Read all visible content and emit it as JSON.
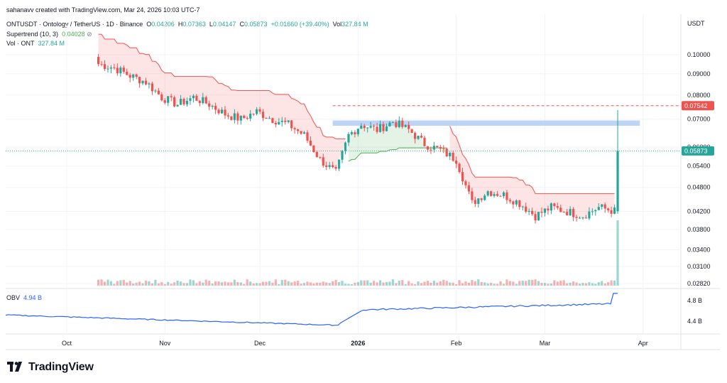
{
  "header": {
    "credit": "sahanavv created with TradingView.com, Mar 24, 2026 10:03 UTC-7",
    "symbol": "ONTUSDT · Ontology / TetherUS · 1D · Binance",
    "o_label": "O",
    "o_value": "0.04206",
    "h_label": "H",
    "h_value": "0.07363",
    "l_label": "L",
    "l_value": "0.04147",
    "c_label": "C",
    "c_value": "0.05873",
    "change": "+0.01660 (+39.40%)",
    "vol_label": "Vol",
    "vol_value": "327.84 M",
    "supertrend_label": "Supertrend (10, 3)",
    "supertrend_value": "0.04028",
    "volume_label": "Vol · ONT",
    "volume_value": "327.84 M",
    "obv_label": "OBV",
    "obv_value": "4.94 B"
  },
  "price_axis": {
    "currency": "USDT",
    "ticks": [
      "0.10000",
      "0.09000",
      "0.08000",
      "0.07000",
      "0.06000",
      "0.05400",
      "0.04800",
      "0.04200",
      "0.03800",
      "0.03400",
      "0.03100",
      "0.02820"
    ],
    "last_price_tag": "0.05873",
    "high_tag": "0.07542"
  },
  "obv_axis": {
    "ticks": [
      "4.8 B",
      "4.4 B"
    ]
  },
  "time_axis": {
    "ticks": [
      "Oct",
      "Nov",
      "Dec",
      "2026",
      "Feb",
      "Mar",
      "Apr"
    ]
  },
  "brand": {
    "name": "TradingView"
  },
  "colors": {
    "up": "#26a69a",
    "down": "#ef5350",
    "obv": "#2962ff",
    "zone": "#b3ccf5",
    "supertrend_up": "#4caf50",
    "supertrend_down": "#ef5350"
  },
  "chart_data": {
    "type": "candlestick",
    "title": "ONTUSDT · Ontology / TetherUS · 1D · Binance",
    "ylim": [
      0.028,
      0.11
    ],
    "y_scale": "log",
    "grid": true,
    "closes": [
      {
        "date": "2025-10-11",
        "close": 0.095
      },
      {
        "date": "2025-10-16",
        "close": 0.093
      },
      {
        "date": "2025-10-21",
        "close": 0.089
      },
      {
        "date": "2025-10-26",
        "close": 0.086
      },
      {
        "date": "2025-10-31",
        "close": 0.079
      },
      {
        "date": "2025-11-05",
        "close": 0.076
      },
      {
        "date": "2025-11-10",
        "close": 0.079
      },
      {
        "date": "2025-11-15",
        "close": 0.076
      },
      {
        "date": "2025-11-20",
        "close": 0.072
      },
      {
        "date": "2025-11-25",
        "close": 0.07
      },
      {
        "date": "2025-11-30",
        "close": 0.073
      },
      {
        "date": "2025-12-05",
        "close": 0.07
      },
      {
        "date": "2025-12-10",
        "close": 0.068
      },
      {
        "date": "2025-12-15",
        "close": 0.064
      },
      {
        "date": "2025-12-20",
        "close": 0.056
      },
      {
        "date": "2025-12-25",
        "close": 0.052
      },
      {
        "date": "2025-12-29",
        "close": 0.064
      },
      {
        "date": "2026-01-02",
        "close": 0.068
      },
      {
        "date": "2026-01-07",
        "close": 0.066
      },
      {
        "date": "2026-01-12",
        "close": 0.069
      },
      {
        "date": "2026-01-17",
        "close": 0.066
      },
      {
        "date": "2026-01-22",
        "close": 0.061
      },
      {
        "date": "2026-01-27",
        "close": 0.059
      },
      {
        "date": "2026-02-01",
        "close": 0.056
      },
      {
        "date": "2026-02-06",
        "close": 0.044
      },
      {
        "date": "2026-02-11",
        "close": 0.047
      },
      {
        "date": "2026-02-16",
        "close": 0.046
      },
      {
        "date": "2026-02-21",
        "close": 0.044
      },
      {
        "date": "2026-02-26",
        "close": 0.041
      },
      {
        "date": "2026-03-03",
        "close": 0.043
      },
      {
        "date": "2026-03-08",
        "close": 0.042
      },
      {
        "date": "2026-03-13",
        "close": 0.041
      },
      {
        "date": "2026-03-18",
        "close": 0.043
      },
      {
        "date": "2026-03-23",
        "close": 0.0421
      },
      {
        "date": "2026-03-24",
        "close": 0.05873
      }
    ],
    "last_candle": {
      "date": "2026-03-24",
      "open": 0.04206,
      "high": 0.07363,
      "low": 0.04147,
      "close": 0.05873
    },
    "resistance_zone": [
      0.0675,
      0.0695
    ],
    "high_line": 0.07542,
    "supertrend": {
      "period": 10,
      "multiplier": 3,
      "value": 0.04028
    },
    "obv_last_b": 4.94
  }
}
